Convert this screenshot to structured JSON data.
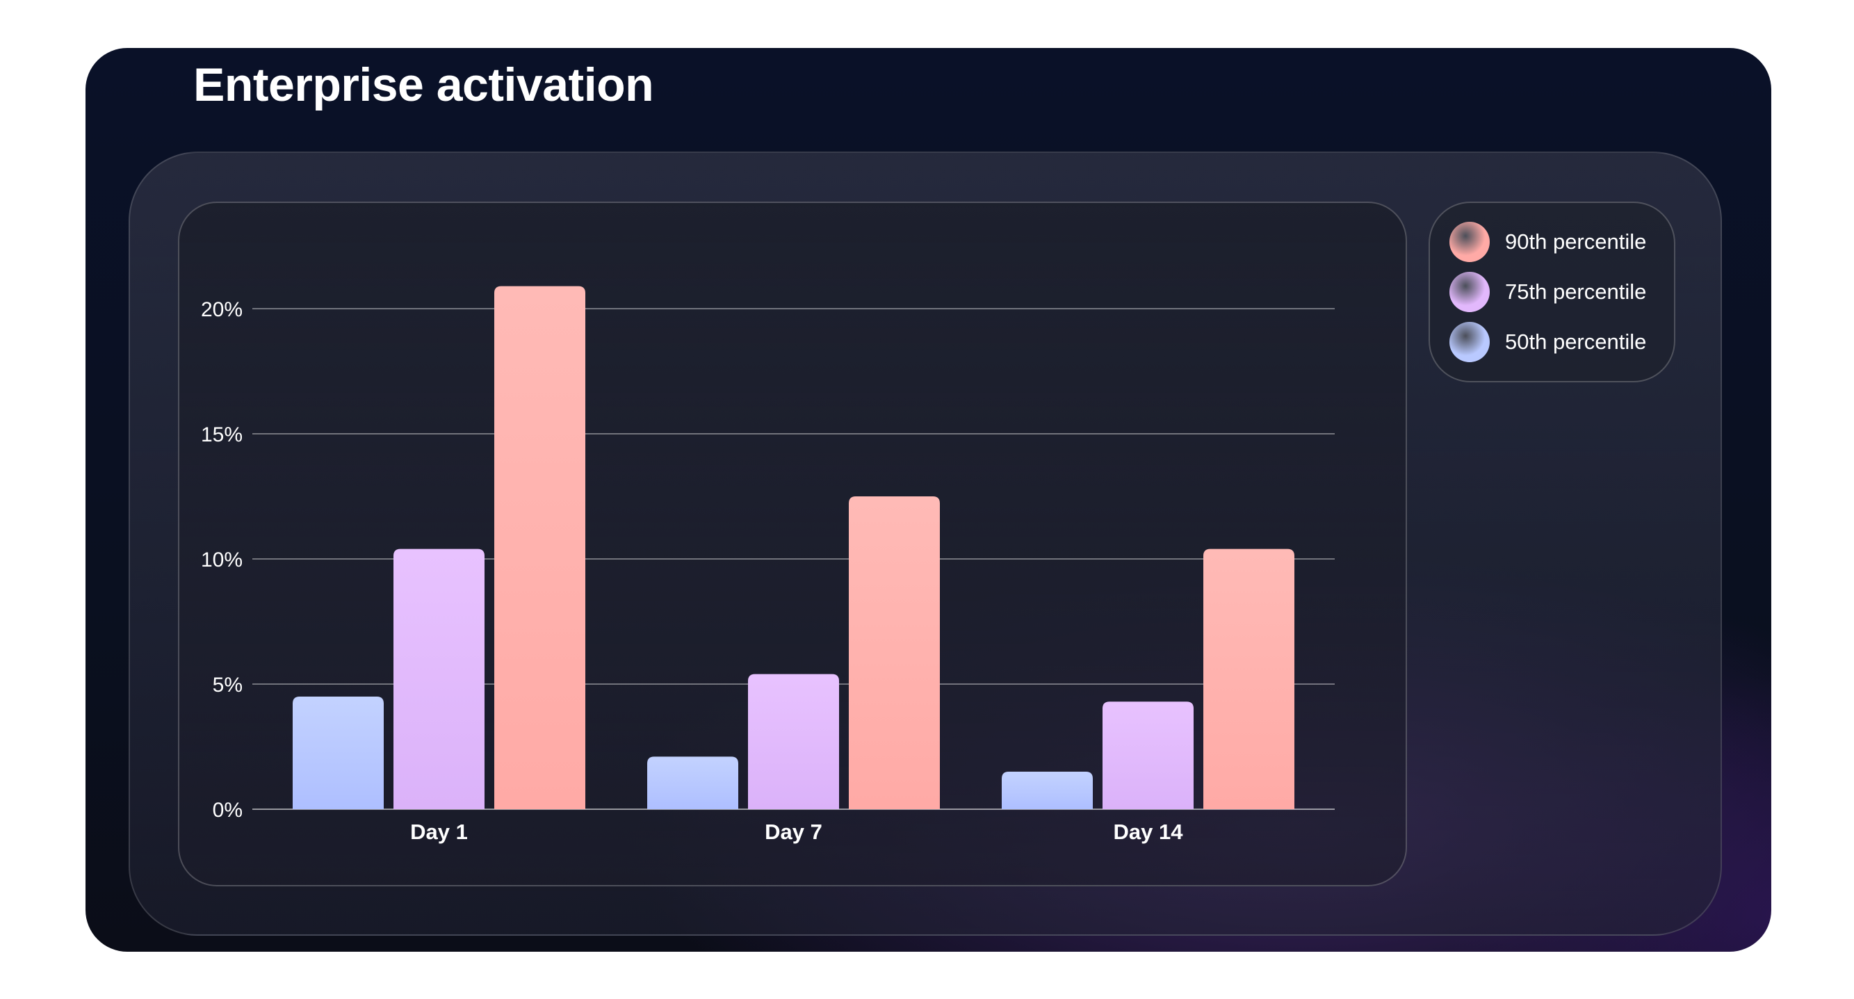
{
  "title": "Enterprise activation",
  "legend": {
    "items": [
      {
        "label": "90th percentile",
        "color": "#ffaaa6"
      },
      {
        "label": "75th percentile",
        "color": "#e2b8fc"
      },
      {
        "label": "50th percentile",
        "color": "#b9c9ff"
      }
    ]
  },
  "chart_data": {
    "type": "bar",
    "title": "Enterprise activation",
    "categories": [
      "Day 1",
      "Day 7",
      "Day 14"
    ],
    "series": [
      {
        "name": "50th percentile",
        "values": [
          4.5,
          2.1,
          1.5
        ],
        "color": "#b9c9ff"
      },
      {
        "name": "75th percentile",
        "values": [
          10.4,
          5.4,
          4.3
        ],
        "color": "#e2b8fc"
      },
      {
        "name": "90th percentile",
        "values": [
          20.9,
          12.5,
          10.4
        ],
        "color": "#ffaaa6"
      }
    ],
    "y_ticks": [
      0,
      5,
      10,
      15,
      20
    ],
    "y_tick_labels": [
      "0%",
      "5%",
      "10%",
      "15%",
      "20%"
    ],
    "ylim": [
      0,
      20
    ],
    "xlabel": "",
    "ylabel": "",
    "grid": true,
    "legend_position": "top-right"
  }
}
